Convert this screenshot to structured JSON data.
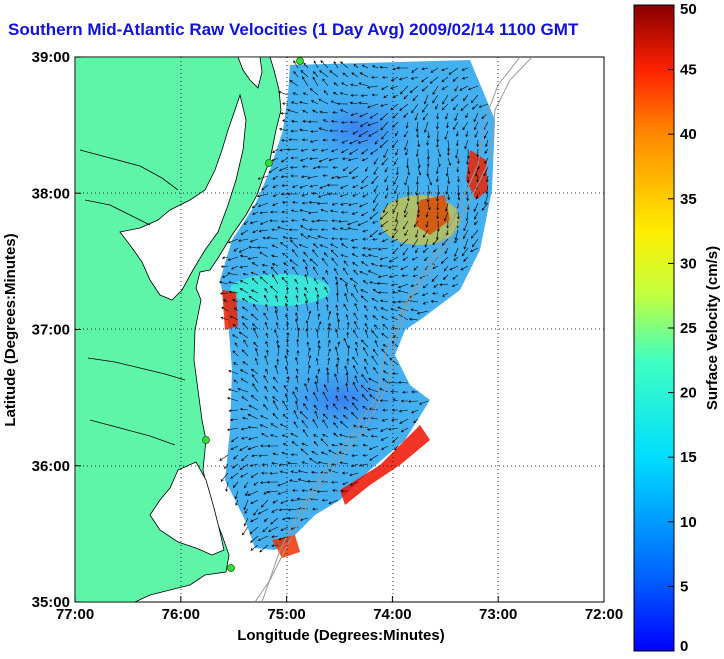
{
  "title": "Southern Mid-Atlantic Raw Velocities (1 Day Avg) 2009/02/14 1100 GMT",
  "chart_data": {
    "type": "heatmap",
    "xlabel": "Longitude (Degrees:Minutes)",
    "ylabel": "Latitude (Degrees:Minutes)",
    "x_ticks": [
      "77:00",
      "76:00",
      "75:00",
      "74:00",
      "73:00",
      "72:00"
    ],
    "y_ticks": [
      "39:00",
      "38:00",
      "37:00",
      "36:00",
      "35:00"
    ],
    "xlim": [
      -77,
      -72
    ],
    "ylim": [
      35,
      39
    ],
    "grid": true,
    "colorbar": {
      "label": "Surface Velocity (cm/s)",
      "ticks": [
        "0",
        "5",
        "10",
        "15",
        "20",
        "25",
        "30",
        "35",
        "40",
        "45",
        "50"
      ],
      "range": [
        0,
        50
      ],
      "colormap": "jet"
    },
    "colors": {
      "land": "#5ef5a8",
      "coast": "#000000",
      "station": "#33dd33",
      "bathymetry": "#9a9a9a",
      "arrows": "#000000"
    }
  }
}
